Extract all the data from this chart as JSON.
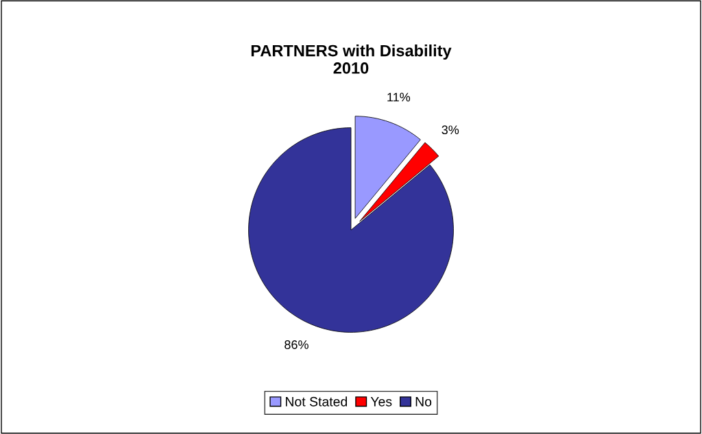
{
  "chart_data": {
    "type": "pie",
    "title": "PARTNERS with Disability\n2010",
    "categories": [
      "Not Stated",
      "Yes",
      "No"
    ],
    "values": [
      11,
      3,
      86
    ],
    "colors": [
      "#9999ff",
      "#ff0000",
      "#333399"
    ],
    "value_labels": [
      "11%",
      "3%",
      "86%"
    ],
    "legend": "bottom"
  }
}
